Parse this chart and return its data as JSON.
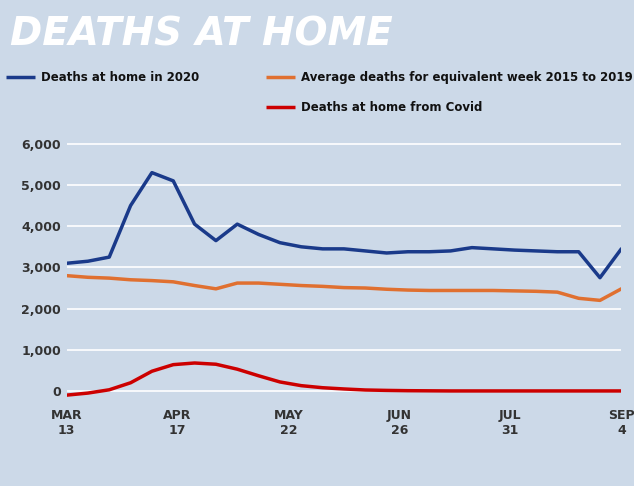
{
  "title": "DEATHS AT HOME",
  "title_bg": "#cc0000",
  "title_color": "#ffffff",
  "bg_color": "#ccd9e8",
  "legend": [
    {
      "label": "Deaths at home in 2020",
      "color": "#1a3a8a"
    },
    {
      "label": "Average deaths for equivalent week 2015 to 2019",
      "color": "#e07030"
    },
    {
      "label": "Deaths at home from Covid",
      "color": "#cc0000"
    }
  ],
  "xtick_labels": [
    "MAR\n13",
    "APR\n17",
    "MAY\n22",
    "JUN\n26",
    "JUL\n31",
    "SEP\n4"
  ],
  "ylim": [
    -300,
    6600
  ],
  "blue_line": [
    3100,
    3150,
    3250,
    4500,
    5300,
    5100,
    4050,
    3650,
    4050,
    3800,
    3600,
    3500,
    3450,
    3450,
    3400,
    3350,
    3380,
    3380,
    3400,
    3480,
    3450,
    3420,
    3400,
    3380,
    3380,
    2750,
    3450
  ],
  "orange_line": [
    2800,
    2760,
    2740,
    2700,
    2680,
    2650,
    2560,
    2480,
    2620,
    2620,
    2590,
    2560,
    2540,
    2510,
    2500,
    2470,
    2450,
    2440,
    2440,
    2440,
    2440,
    2430,
    2420,
    2400,
    2250,
    2200,
    2480
  ],
  "red_line": [
    -100,
    -50,
    30,
    200,
    480,
    640,
    680,
    650,
    530,
    370,
    220,
    130,
    80,
    50,
    25,
    15,
    8,
    5,
    2,
    2,
    2,
    2,
    2,
    2,
    2,
    2,
    2
  ]
}
